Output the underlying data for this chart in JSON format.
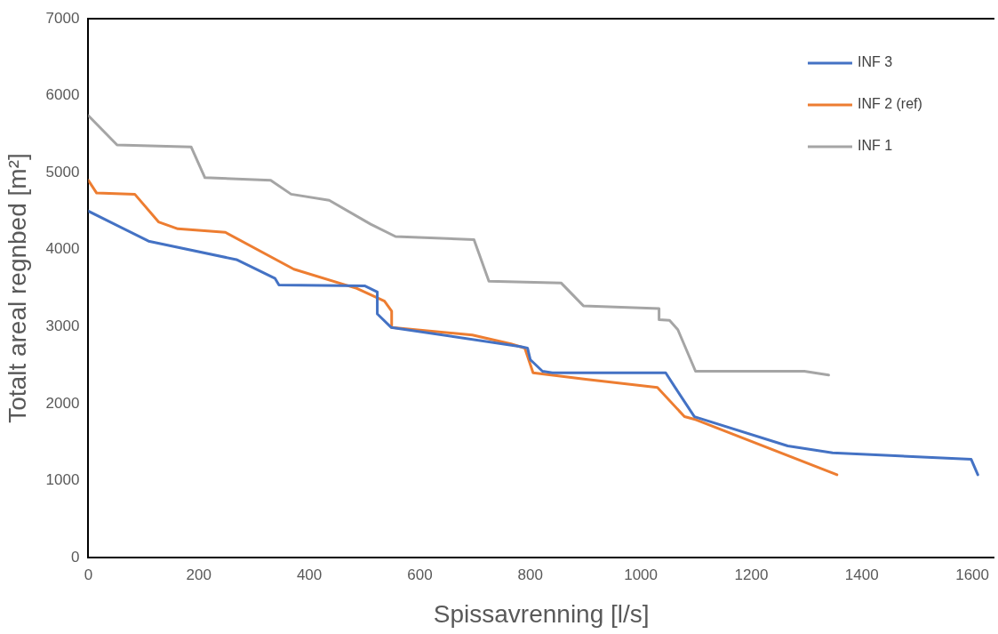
{
  "chart_data": {
    "type": "line",
    "xlabel": "Spissavrenning [l/s]",
    "ylabel": "Totalt areal regnbed [m²]",
    "xlim": [
      0,
      1640
    ],
    "xticks": [
      0,
      200,
      400,
      600,
      800,
      1000,
      1200,
      1400,
      1600
    ],
    "ylim": [
      0,
      7000
    ],
    "yticks": [
      0,
      1000,
      2000,
      3000,
      4000,
      5000,
      6000,
      7000
    ],
    "grid": false,
    "legend": "top right",
    "marker": "none",
    "line_style": "solid",
    "series": [
      {
        "name": "INF 3",
        "color": "#4472c4",
        "x": [
          0,
          109,
          268,
          338,
          345,
          500,
          523,
          523,
          548,
          782,
          795,
          800,
          822,
          840,
          1045,
          1062,
          1097,
          1266,
          1347,
          1598,
          1610
        ],
        "values": [
          4500,
          4110,
          3870,
          3625,
          3540,
          3530,
          3450,
          3165,
          2990,
          2740,
          2720,
          2570,
          2420,
          2400,
          2400,
          2210,
          1830,
          1450,
          1360,
          1275,
          1075
        ]
      },
      {
        "name": "INF 2 (ref)",
        "color": "#ed7d31",
        "x": [
          0,
          15,
          84,
          127,
          162,
          248,
          372,
          486,
          536,
          549,
          549,
          695,
          765,
          790,
          805,
          900,
          1030,
          1079,
          1100,
          1355
        ],
        "values": [
          4900,
          4735,
          4720,
          4360,
          4270,
          4225,
          3745,
          3495,
          3330,
          3200,
          2990,
          2890,
          2775,
          2720,
          2400,
          2315,
          2210,
          1830,
          1790,
          1075
        ]
      },
      {
        "name": "INF 1",
        "color": "#a5a5a5",
        "x": [
          0,
          52,
          186,
          211,
          330,
          367,
          436,
          511,
          556,
          698,
          725,
          856,
          896,
          1033,
          1033,
          1052,
          1067,
          1099,
          1296,
          1340
        ],
        "values": [
          5740,
          5360,
          5335,
          4935,
          4900,
          4720,
          4640,
          4330,
          4170,
          4130,
          3590,
          3565,
          3270,
          3235,
          3090,
          3080,
          2960,
          2420,
          2420,
          2370
        ]
      }
    ]
  }
}
